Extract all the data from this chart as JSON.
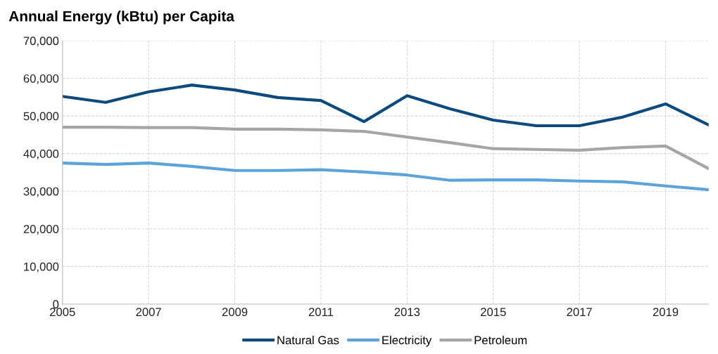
{
  "chart_data": {
    "type": "line",
    "title": "Annual Energy (kBtu) per Capita",
    "x": [
      2005,
      2006,
      2007,
      2008,
      2009,
      2010,
      2011,
      2012,
      2013,
      2014,
      2015,
      2016,
      2017,
      2018,
      2019,
      2020
    ],
    "series": [
      {
        "name": "Natural Gas",
        "color": "#0b4a7e",
        "values": [
          55200,
          53600,
          56400,
          58200,
          56900,
          54900,
          54100,
          48500,
          55400,
          51900,
          48900,
          47400,
          47400,
          49700,
          53200,
          47600
        ]
      },
      {
        "name": "Electricity",
        "color": "#5ba3dc",
        "values": [
          37500,
          37100,
          37500,
          36600,
          35500,
          35500,
          35700,
          35100,
          34300,
          32900,
          33000,
          33000,
          32700,
          32500,
          31400,
          30400
        ]
      },
      {
        "name": "Petroleum",
        "color": "#a5a5a5",
        "values": [
          47000,
          47000,
          46900,
          46900,
          46500,
          46500,
          46300,
          45900,
          44400,
          42900,
          41300,
          41100,
          40900,
          41600,
          42000,
          36000
        ]
      }
    ],
    "xlim": [
      2005,
      2020
    ],
    "xticks": [
      2005,
      2007,
      2009,
      2011,
      2013,
      2015,
      2017,
      2019
    ],
    "ylim": [
      0,
      70000
    ],
    "yticks": [
      {
        "value": 0,
        "label": "0"
      },
      {
        "value": 10000,
        "label": "10,000"
      },
      {
        "value": 20000,
        "label": "20,000"
      },
      {
        "value": 30000,
        "label": "30,000"
      },
      {
        "value": 40000,
        "label": "40,000"
      },
      {
        "value": 50000,
        "label": "50,000"
      },
      {
        "value": 60000,
        "label": "60,000"
      },
      {
        "value": 70000,
        "label": "70,000"
      }
    ],
    "grid": true,
    "legend": "bottom",
    "marker": "none",
    "line_style": "solid"
  }
}
